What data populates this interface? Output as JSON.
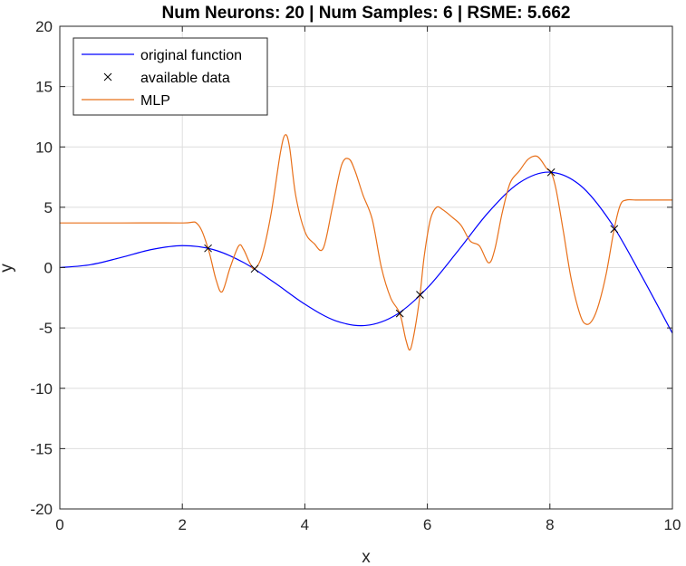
{
  "chart_data": {
    "type": "line",
    "title": "Num Neurons: 20 | Num Samples: 6 | RSME: 5.662",
    "xlabel": "x",
    "ylabel": "y",
    "xlim": [
      0,
      10
    ],
    "ylim": [
      -20,
      20
    ],
    "xticks": [
      0,
      2,
      4,
      6,
      8,
      10
    ],
    "yticks": [
      -20,
      -15,
      -10,
      -5,
      0,
      5,
      10,
      15,
      20
    ],
    "grid": true,
    "legend_position": "top-left",
    "series": [
      {
        "name": "original function",
        "color": "#0000ff",
        "style": "line",
        "x": [
          0,
          0.5,
          1.0,
          1.5,
          2.0,
          2.5,
          3.0,
          3.5,
          4.0,
          4.5,
          5.0,
          5.5,
          6.0,
          6.5,
          7.0,
          7.5,
          8.0,
          8.5,
          9.0,
          9.5,
          10.0
        ],
        "y": [
          0.0,
          0.24,
          0.84,
          1.5,
          1.82,
          1.5,
          0.42,
          -1.23,
          -3.03,
          -4.4,
          -4.79,
          -3.88,
          -1.68,
          1.39,
          4.6,
          7.03,
          7.91,
          6.8,
          3.71,
          -0.72,
          -5.44
        ]
      },
      {
        "name": "available data",
        "color": "#000000",
        "style": "marker-x",
        "x": [
          2.42,
          3.18,
          5.55,
          5.88,
          8.02,
          9.05
        ],
        "y": [
          1.6,
          -0.1,
          -3.8,
          -2.25,
          7.9,
          3.2
        ]
      },
      {
        "name": "MLP",
        "color": "#e8701a",
        "style": "line",
        "x": [
          0,
          1.0,
          2.0,
          2.25,
          2.42,
          2.55,
          2.65,
          2.78,
          2.92,
          3.0,
          3.1,
          3.18,
          3.3,
          3.45,
          3.6,
          3.68,
          3.75,
          3.85,
          4.0,
          4.15,
          4.3,
          4.45,
          4.6,
          4.72,
          4.82,
          4.95,
          5.1,
          5.25,
          5.4,
          5.55,
          5.65,
          5.72,
          5.8,
          5.88,
          5.95,
          6.05,
          6.15,
          6.25,
          6.4,
          6.55,
          6.7,
          6.85,
          7.0,
          7.1,
          7.22,
          7.35,
          7.5,
          7.65,
          7.8,
          7.95,
          8.02,
          8.1,
          8.22,
          8.35,
          8.5,
          8.6,
          8.7,
          8.8,
          8.92,
          9.05,
          9.15,
          9.25,
          9.4,
          9.6,
          10.0
        ],
        "y": [
          3.7,
          3.7,
          3.7,
          3.6,
          1.6,
          -1.0,
          -2.0,
          0.0,
          1.8,
          1.5,
          0.4,
          -0.1,
          1.0,
          4.5,
          9.5,
          11.0,
          10.0,
          6.0,
          3.0,
          2.0,
          1.6,
          5.0,
          8.5,
          9.0,
          8.0,
          6.0,
          4.0,
          0.0,
          -2.5,
          -3.8,
          -6.0,
          -6.8,
          -5.0,
          -2.25,
          1.0,
          4.0,
          5.0,
          4.8,
          4.2,
          3.5,
          2.2,
          1.8,
          0.4,
          1.5,
          4.5,
          7.0,
          8.0,
          9.0,
          9.2,
          8.2,
          7.9,
          6.5,
          3.0,
          -1.0,
          -4.0,
          -4.7,
          -4.3,
          -3.0,
          -0.5,
          3.2,
          5.2,
          5.6,
          5.6,
          5.6,
          5.6
        ]
      }
    ]
  }
}
